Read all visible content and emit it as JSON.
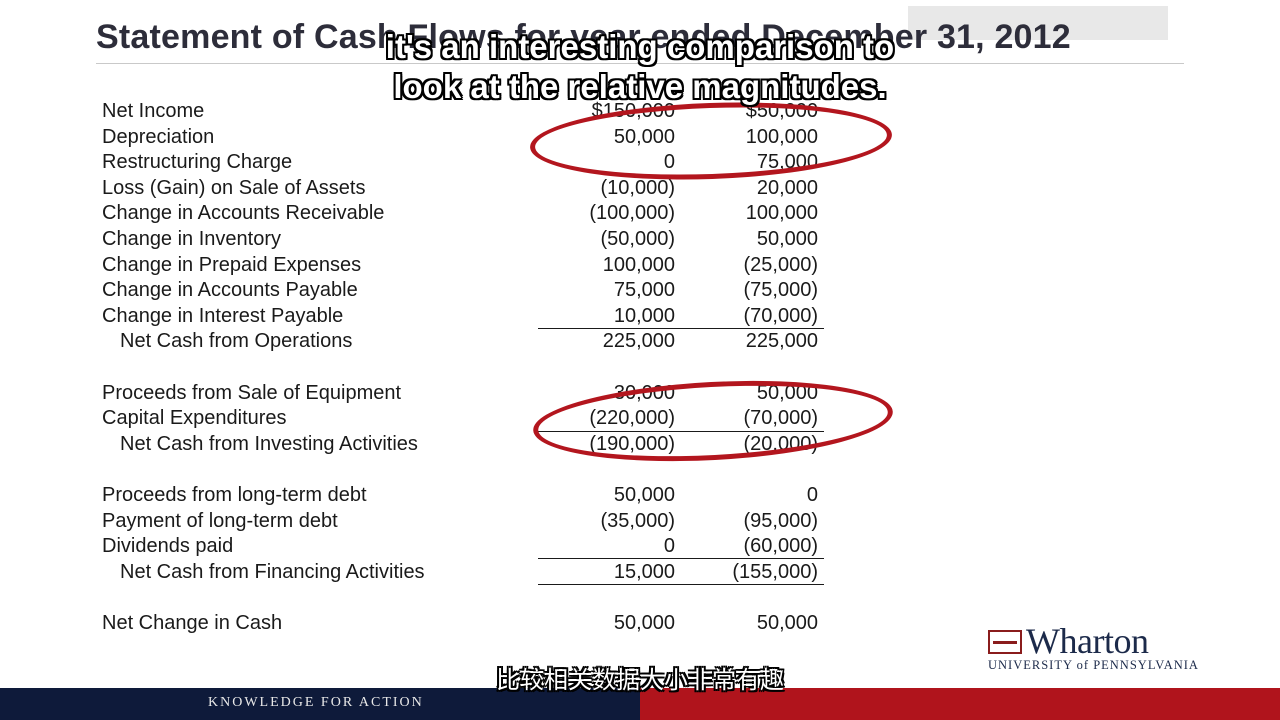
{
  "slide": {
    "title": "Statement of Cash Flows for year ended December 31, 2012"
  },
  "caption": {
    "en_line1": "it's an interesting comparison to",
    "en_line2": "look at the relative magnitudes.",
    "cn": "比较相关数据大小非常有趣"
  },
  "rows": [
    {
      "label": "Net Income",
      "c1": "$150,000",
      "c2": "$50,000"
    },
    {
      "label": "Depreciation",
      "c1": "50,000",
      "c2": "100,000"
    },
    {
      "label": "Restructuring Charge",
      "c1": "0",
      "c2": "75,000"
    },
    {
      "label": "Loss (Gain) on Sale of Assets",
      "c1": "(10,000)",
      "c2": "20,000"
    },
    {
      "label": "Change in Accounts Receivable",
      "c1": "(100,000)",
      "c2": "100,000"
    },
    {
      "label": "Change in Inventory",
      "c1": "(50,000)",
      "c2": "50,000"
    },
    {
      "label": "Change in Prepaid Expenses",
      "c1": "100,000",
      "c2": "(25,000)"
    },
    {
      "label": "Change in Accounts Payable",
      "c1": "75,000",
      "c2": "(75,000)"
    },
    {
      "label": "Change in Interest Payable",
      "c1": "10,000",
      "c2": "(70,000)"
    },
    {
      "label": "Net Cash from Operations",
      "c1": "225,000",
      "c2": "225,000"
    },
    {
      "label": "Proceeds from Sale of Equipment",
      "c1": "30,000",
      "c2": "50,000"
    },
    {
      "label": "Capital Expenditures",
      "c1": "(220,000)",
      "c2": "(70,000)"
    },
    {
      "label": "Net Cash from Investing Activities",
      "c1": "(190,000)",
      "c2": "(20,000)"
    },
    {
      "label": "Proceeds from long-term debt",
      "c1": "50,000",
      "c2": "0"
    },
    {
      "label": "Payment of long-term debt",
      "c1": "(35,000)",
      "c2": "(95,000)"
    },
    {
      "label": "Dividends paid",
      "c1": "0",
      "c2": "(60,000)"
    },
    {
      "label": "Net Cash from Financing Activities",
      "c1": "15,000",
      "c2": "(155,000)"
    },
    {
      "label": "Net Change in Cash",
      "c1": "50,000",
      "c2": "50,000"
    }
  ],
  "logo": {
    "name": "Wharton",
    "subtitle": "UNIVERSITY of PENNSYLVANIA"
  },
  "footer": {
    "tagline": "KNOWLEDGE FOR ACTION"
  },
  "colors": {
    "highlight_ellipse": "#b3161e",
    "footer_navy": "#0e1a3a",
    "footer_red": "#b0141c"
  }
}
